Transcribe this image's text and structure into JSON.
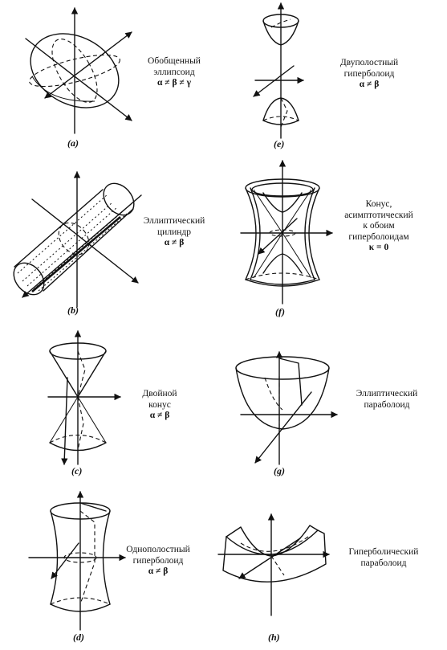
{
  "panels": [
    {
      "id": "a",
      "caption": "(a)",
      "label": [
        "Обобщенный",
        "эллипсоид"
      ],
      "condition": "α ≠ β ≠ γ"
    },
    {
      "id": "b",
      "caption": "(b)",
      "label": [
        "Эллиптический",
        "цилиндр"
      ],
      "condition": "α ≠ β"
    },
    {
      "id": "c",
      "caption": "(c)",
      "label": [
        "Двойной",
        "конус"
      ],
      "condition": "α ≠ β"
    },
    {
      "id": "d",
      "caption": "(d)",
      "label": [
        "Однополостный",
        "гиперболоид"
      ],
      "condition": "α ≠ β"
    },
    {
      "id": "e",
      "caption": "(e)",
      "label": [
        "Двуполостный",
        "гиперболоид"
      ],
      "condition": "α ≠ β"
    },
    {
      "id": "f",
      "caption": "(f)",
      "label": [
        "Конус,",
        "асимптотический",
        "к обоим",
        "гиперболоидам"
      ],
      "condition": "κ = 0"
    },
    {
      "id": "g",
      "caption": "(g)",
      "label": [
        "Эллиптический",
        "параболоид"
      ],
      "condition": ""
    },
    {
      "id": "h",
      "caption": "(h)",
      "label": [
        "Гиперболический",
        "параболоид"
      ],
      "condition": ""
    }
  ]
}
